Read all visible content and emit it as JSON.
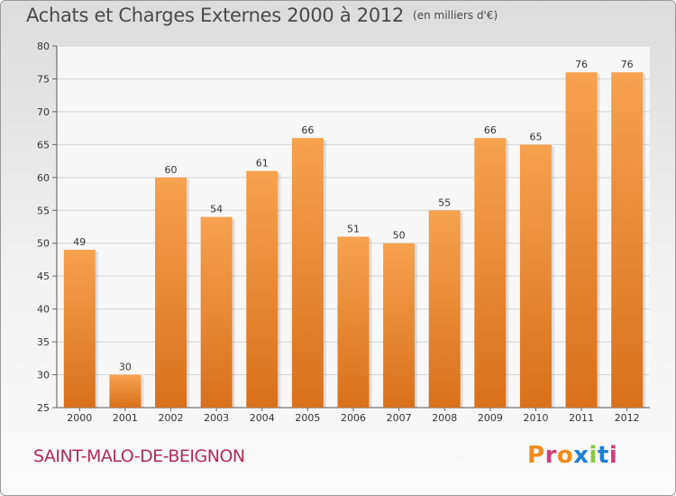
{
  "header": {
    "title": "Achats et Charges Externes 2000 à 2012",
    "unit": "(en milliers d'€)"
  },
  "footer": {
    "commune": "SAINT-MALO-DE-BEIGNON",
    "brand": "Proxiti"
  },
  "colors": {
    "bar_light": "#f6a24f",
    "bar_dark": "#d9701b",
    "commune_text": "#b22a5c",
    "brand_letters": [
      "#f08b1d",
      "#d33c7a",
      "#f08b1d",
      "#1f7fd2",
      "#8cc63f",
      "#1f7fd2",
      "#d33c7a"
    ]
  },
  "chart_data": {
    "type": "bar",
    "title": "Achats et Charges Externes 2000 à 2012",
    "subtitle": "(en milliers d'€)",
    "categories": [
      "2000",
      "2001",
      "2002",
      "2003",
      "2004",
      "2005",
      "2006",
      "2007",
      "2008",
      "2009",
      "2010",
      "2011",
      "2012"
    ],
    "values": [
      49,
      30,
      60,
      54,
      61,
      66,
      51,
      50,
      55,
      66,
      65,
      76,
      76
    ],
    "ylim": [
      25,
      80
    ],
    "yticks": [
      25,
      30,
      35,
      40,
      45,
      50,
      55,
      60,
      65,
      70,
      75,
      80
    ],
    "grid": true,
    "legend": "none"
  }
}
